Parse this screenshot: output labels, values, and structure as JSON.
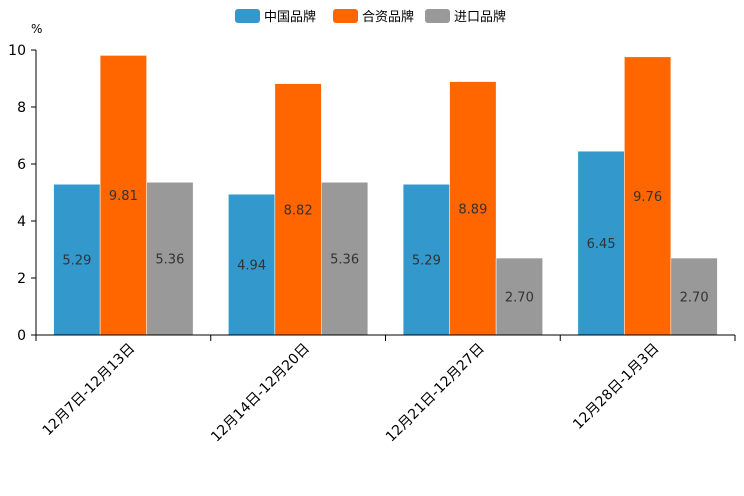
{
  "chart_data": {
    "type": "bar",
    "title": "",
    "ylabel": "%",
    "xlabel": "",
    "ylim": [
      0,
      10
    ],
    "yticks": [
      0,
      2,
      4,
      6,
      8,
      10
    ],
    "categories": [
      "12月7日-12月13日",
      "12月14日-12月20日",
      "12月21日-12月27日",
      "12月28日-1月3日"
    ],
    "series": [
      {
        "name": "中国品牌",
        "color": "#3399cc",
        "values": [
          5.29,
          4.94,
          5.29,
          6.45
        ],
        "labels": [
          "5.29",
          "4.94",
          "5.29",
          "6.45"
        ]
      },
      {
        "name": "合资品牌",
        "color": "#ff6600",
        "values": [
          9.81,
          8.82,
          8.89,
          9.76
        ],
        "labels": [
          "9.81",
          "8.82",
          "8.89",
          "9.76"
        ]
      },
      {
        "name": "进口品牌",
        "color": "#999999",
        "values": [
          5.36,
          5.36,
          2.7,
          2.7
        ],
        "labels": [
          "5.36",
          "5.36",
          "2.70",
          "2.70"
        ]
      }
    ],
    "legend_position": "top-center"
  }
}
